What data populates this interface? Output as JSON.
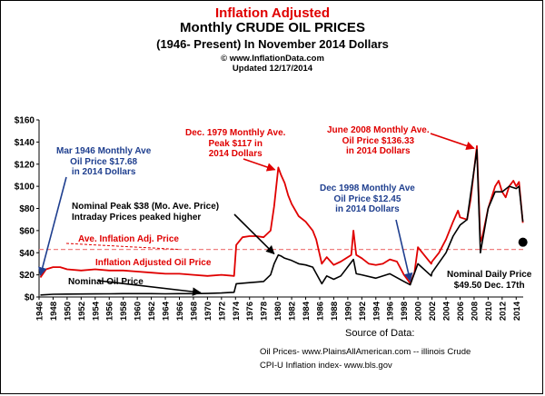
{
  "title": {
    "line1": "Inflation Adjusted",
    "line2": "Monthly CRUDE OIL PRICES",
    "line3": "(1946- Present) In November 2014 Dollars",
    "line4": "© www.InflationData.com",
    "line5": "Updated 12/17/2014"
  },
  "chart_data": {
    "type": "line",
    "title": "Inflation Adjusted Monthly CRUDE OIL PRICES (1946- Present) In November 2014 Dollars",
    "xlabel": "",
    "ylabel": "",
    "xlim": [
      1946,
      2015
    ],
    "ylim": [
      0,
      160
    ],
    "grid": false,
    "y_ticks": [
      "$0",
      "$20",
      "$40",
      "$60",
      "$80",
      "$100",
      "$120",
      "$140",
      "$160"
    ],
    "x_ticks": [
      "1946",
      "1948",
      "1950",
      "1952",
      "1954",
      "1956",
      "1958",
      "1960",
      "1962",
      "1964",
      "1966",
      "1968",
      "1970",
      "1972",
      "1974",
      "1976",
      "1978",
      "1980",
      "1982",
      "1984",
      "1986",
      "1988",
      "1990",
      "1992",
      "1994",
      "1996",
      "1998",
      "2000",
      "2002",
      "2004",
      "2006",
      "2008",
      "2010",
      "2012",
      "2014"
    ],
    "average_line": {
      "label": "Ave. Inflation Adj. Price",
      "value": 43
    },
    "series": [
      {
        "name": "Inflation Adjusted Oil Price",
        "color": "#e00000",
        "x": [
          1946.2,
          1947,
          1948,
          1949,
          1950,
          1952,
          1954,
          1956,
          1958,
          1960,
          1962,
          1964,
          1966,
          1968,
          1970,
          1972,
          1973.8,
          1974.1,
          1975,
          1976,
          1977,
          1978,
          1979,
          1979.5,
          1980.1,
          1980.5,
          1981,
          1981.5,
          1982,
          1983,
          1984,
          1985,
          1985.5,
          1986.3,
          1987,
          1988,
          1989,
          1990.5,
          1990.8,
          1991.2,
          1992,
          1993,
          1994,
          1995,
          1996,
          1997,
          1998,
          1998.9,
          1999.5,
          2000,
          2001,
          2001.9,
          2002,
          2003,
          2004,
          2005,
          2005.7,
          2006,
          2007,
          2007.5,
          2008.4,
          2008.9,
          2009.2,
          2010,
          2011,
          2011.5,
          2012,
          2012.5,
          2013,
          2013.6,
          2014,
          2014.4,
          2014.95
        ],
        "values": [
          17.68,
          25,
          27,
          27,
          25,
          24,
          25,
          24,
          24,
          23,
          22,
          21,
          21,
          20,
          19,
          20,
          19,
          47,
          54,
          55,
          55,
          54,
          60,
          82,
          117,
          110,
          103,
          92,
          84,
          73,
          68,
          60,
          52,
          30,
          36,
          29,
          32,
          38,
          60,
          38,
          35,
          30,
          29,
          30,
          34,
          32,
          20,
          12.45,
          22,
          45,
          37,
          30,
          32,
          40,
          52,
          68,
          78,
          72,
          70,
          88,
          136.33,
          50,
          55,
          80,
          100,
          105,
          95,
          90,
          100,
          105,
          100,
          104,
          67
        ]
      },
      {
        "name": "Nominal Oil Price",
        "color": "#000000",
        "x": [
          1946.2,
          1948,
          1950,
          1952,
          1954,
          1956,
          1958,
          1960,
          1962,
          1964,
          1966,
          1968,
          1970,
          1972,
          1973.8,
          1974.1,
          1976,
          1978,
          1979,
          1979.5,
          1980.1,
          1980.5,
          1981,
          1982,
          1983,
          1984,
          1985,
          1986.3,
          1987,
          1988,
          1989,
          1990.8,
          1991.2,
          1992,
          1994,
          1996,
          1998,
          1998.9,
          2000,
          2001.9,
          2002,
          2004,
          2005,
          2006,
          2007,
          2008.4,
          2008.9,
          2010,
          2011,
          2012,
          2013,
          2014,
          2014.4,
          2014.95
        ],
        "values": [
          1.8,
          2.5,
          2.6,
          2.7,
          2.8,
          2.9,
          3,
          3,
          3,
          2.9,
          3,
          3,
          3.2,
          3.6,
          4.3,
          12,
          13,
          14,
          20,
          30,
          38,
          37,
          35,
          33,
          30,
          29,
          27,
          12,
          19,
          16,
          19,
          34,
          21,
          20,
          17,
          21,
          14,
          11,
          30,
          19,
          22,
          40,
          55,
          65,
          70,
          133,
          40,
          80,
          95,
          95,
          100,
          98,
          100,
          68
        ]
      }
    ],
    "annotations": [
      {
        "lines": [
          "Mar 1946 Monthly Ave",
          "Oil  Price $17.68",
          "in 2014 Dollars"
        ],
        "x": 1946.2,
        "y": 17.68
      },
      {
        "lines": [
          "Dec. 1979 Monthly Ave.",
          "Peak $117 in",
          "2014 Dollars"
        ],
        "x": 1980.1,
        "y": 117
      },
      {
        "lines": [
          "June 2008 Monthly Ave.",
          "Oil  Price $136.33",
          "in 2014 Dollars"
        ],
        "x": 2008.4,
        "y": 136.33
      },
      {
        "lines": [
          "Nominal Peak $38 (Mo. Ave. Price)",
          "Intraday Prices peaked higher"
        ],
        "x": 1980.1,
        "y": 38
      },
      {
        "lines": [
          "Dec 1998 Monthly Ave",
          "Oil  Price $12.45",
          "in 2014 Dollars"
        ],
        "x": 1998.9,
        "y": 12.45
      },
      {
        "lines": [
          "Nominal Daily Price",
          "$49.50 Dec. 17th"
        ],
        "x": 2014.96,
        "y": 49.5
      },
      {
        "lines": [
          "Inflation Adjusted Oil Price"
        ]
      },
      {
        "lines": [
          "Nominal Oil Price"
        ]
      },
      {
        "lines": [
          "Ave. Inflation Adj. Price"
        ]
      }
    ],
    "daily_point": {
      "x": 2014.96,
      "y": 49.5
    }
  },
  "source": {
    "heading": "Source of Data:",
    "line1": "Oil Prices- www.PlainsAllAmerican.com  -- illinois Crude",
    "line2": "CPI-U Inflation index-    www.bls.gov"
  }
}
